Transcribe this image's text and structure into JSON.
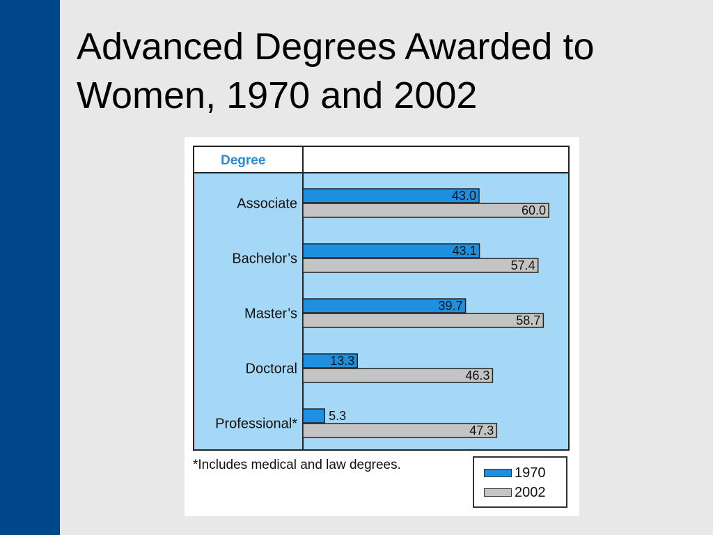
{
  "slide": {
    "title_line1": "Advanced Degrees Awarded to",
    "title_line2": "Women, 1970 and 2002"
  },
  "colors": {
    "sidebar": "#00478a",
    "series_1970": "#1f8fe0",
    "series_2002": "#c4c4c4",
    "plot_background": "#a4d8f6",
    "header_text": "#2a8ccc"
  },
  "chart_data": {
    "type": "bar",
    "orientation": "horizontal",
    "header_label": "Degree",
    "categories": [
      "Associate",
      "Bachelor’s",
      "Master’s",
      "Doctoral",
      "Professional*"
    ],
    "series": [
      {
        "name": "1970",
        "values": [
          43.0,
          43.1,
          39.7,
          13.3,
          5.3
        ],
        "labels": [
          "43.0",
          "43.1",
          "39.7",
          "13.3",
          "5.3"
        ]
      },
      {
        "name": "2002",
        "values": [
          60.0,
          57.4,
          58.7,
          46.3,
          47.3
        ],
        "labels": [
          "60.0",
          "57.4",
          "58.7",
          "46.3",
          "47.3"
        ]
      }
    ],
    "xlim": [
      0,
      60
    ],
    "footnote": "*Includes medical and law degrees.",
    "legend": [
      "1970",
      "2002"
    ],
    "legend_position": "bottom-right",
    "grid": false
  }
}
